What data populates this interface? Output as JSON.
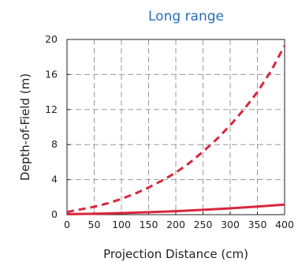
{
  "chart_data": {
    "type": "line",
    "title": "Long range",
    "xlabel": "Projection Distance (cm)",
    "ylabel": "Depth-of-Field (m)",
    "xlim": [
      0,
      400
    ],
    "ylim": [
      0,
      20
    ],
    "x_ticks": [
      "0",
      "50",
      "100",
      "150",
      "200",
      "250",
      "300",
      "350",
      "400"
    ],
    "y_ticks": [
      "0",
      "4",
      "8",
      "12",
      "16",
      "20"
    ],
    "grid": true,
    "legend": "none",
    "series": [
      {
        "style": "dashed",
        "color": "#d8263c",
        "x": [
          0,
          25,
          50,
          75,
          100,
          125,
          150,
          175,
          200,
          225,
          250,
          275,
          300,
          325,
          350,
          375,
          400
        ],
        "y": [
          0.3,
          0.6,
          0.9,
          1.3,
          1.8,
          2.4,
          3.1,
          3.9,
          4.8,
          5.9,
          7.2,
          8.6,
          10.2,
          12.0,
          14.0,
          16.4,
          19.3
        ]
      },
      {
        "style": "solid",
        "color": "#d8263c",
        "x": [
          0,
          50,
          100,
          150,
          200,
          250,
          300,
          350,
          400
        ],
        "y": [
          0.05,
          0.1,
          0.18,
          0.28,
          0.4,
          0.55,
          0.72,
          0.92,
          1.15
        ]
      }
    ],
    "colors": {
      "title": "#2a6fb6",
      "series": "#d8263c"
    }
  }
}
